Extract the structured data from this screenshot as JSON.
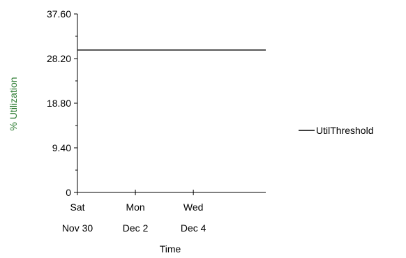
{
  "chart_data": {
    "type": "line",
    "title": "",
    "xlabel": "Time",
    "ylabel": "% Utilization",
    "ylabel_color": "#2e7d32",
    "ylim": [
      0,
      37.6
    ],
    "yticks": [
      "0",
      "9.40",
      "18.80",
      "28.20",
      "37.60"
    ],
    "ytick_values": [
      0,
      9.4,
      18.8,
      28.2,
      37.6
    ],
    "xlim": [
      0,
      6.5
    ],
    "xticks": [
      {
        "x": 0,
        "day": "Sat",
        "date": "Nov 30"
      },
      {
        "x": 2,
        "day": "Mon",
        "date": "Dec 2"
      },
      {
        "x": 4,
        "day": "Wed",
        "date": "Dec 4"
      }
    ],
    "grid": false,
    "legend_position": "right",
    "series": [
      {
        "name": "UtilThreshold",
        "color": "#000000",
        "x": [
          0,
          6.5
        ],
        "y": [
          30,
          30
        ]
      }
    ]
  }
}
